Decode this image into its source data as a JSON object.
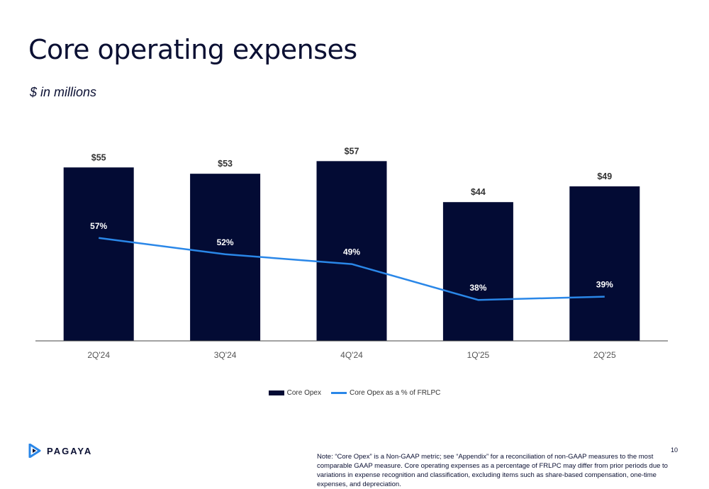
{
  "header": {
    "title": "Core operating expenses",
    "subtitle": "$ in millions"
  },
  "chart_data": {
    "type": "bar",
    "categories": [
      "2Q'24",
      "3Q'24",
      "4Q'24",
      "1Q'25",
      "2Q'25"
    ],
    "series": [
      {
        "name": "Core Opex",
        "type": "bar",
        "values": [
          55,
          53,
          57,
          44,
          49
        ],
        "labels": [
          "$55",
          "$53",
          "$57",
          "$44",
          "$49"
        ],
        "color": "#030b34"
      },
      {
        "name": "Core Opex as a % of FRLPC",
        "type": "line",
        "values": [
          57,
          52,
          49,
          38,
          39
        ],
        "labels": [
          "57%",
          "52%",
          "49%",
          "38%",
          "39%"
        ],
        "color": "#2a87e8"
      }
    ],
    "legend_position": "bottom",
    "grid": false
  },
  "legend": {
    "bar_label": "Core Opex",
    "line_label": "Core Opex as a % of FRLPC"
  },
  "footer": {
    "brand": "PAGAYA",
    "page_number": "10",
    "note": "Note: “Core Opex” is a Non-GAAP metric; see “Appendix” for a reconciliation of non-GAAP measures to the most comparable GAAP measure. Core operating expenses as a percentage of FRLPC may differ from prior periods due to variations in expense recognition and classification, excluding items such as share-based compensation, one-time expenses, and depreciation."
  }
}
